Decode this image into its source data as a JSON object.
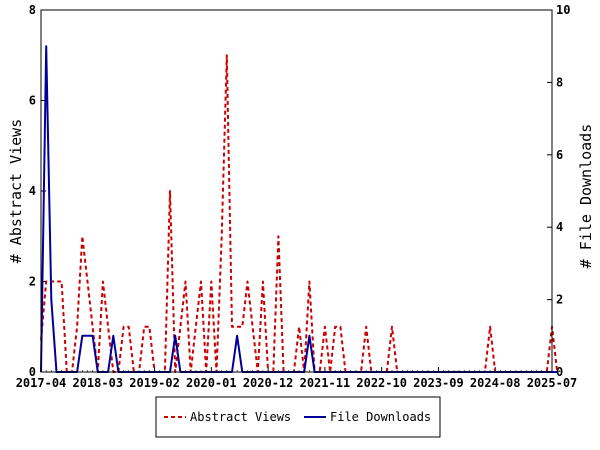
{
  "chart_data": {
    "type": "line",
    "ylabel": "# Abstract Views",
    "y2label": "# File Downloads",
    "x_tick_labels": [
      "2017-04",
      "2018-03",
      "2019-02",
      "2020-01",
      "2020-12",
      "2021-11",
      "2022-10",
      "2023-09",
      "2024-08",
      "2025-07"
    ],
    "ylim": [
      0,
      8
    ],
    "y_ticks": [
      "0",
      "2",
      "4",
      "6",
      "8"
    ],
    "y2lim": [
      0,
      10
    ],
    "y2_ticks": [
      "0",
      "2",
      "4",
      "6",
      "8",
      "10"
    ],
    "legend_position": "bottom-center",
    "grid": false,
    "series": [
      {
        "name": "Abstract Views",
        "axis": "left",
        "color": "#cc0000",
        "style": "dashed",
        "points": [
          [
            "2017-04",
            0.7
          ],
          [
            "2017-05",
            2
          ],
          [
            "2017-06",
            2
          ],
          [
            "2017-07",
            2
          ],
          [
            "2017-08",
            2
          ],
          [
            "2017-09",
            0
          ],
          [
            "2017-10",
            0
          ],
          [
            "2017-11",
            1
          ],
          [
            "2017-12",
            3
          ],
          [
            "2018-01",
            2
          ],
          [
            "2018-02",
            1
          ],
          [
            "2018-03",
            0
          ],
          [
            "2018-04",
            2
          ],
          [
            "2018-05",
            1
          ],
          [
            "2018-06",
            0
          ],
          [
            "2018-07",
            0
          ],
          [
            "2018-08",
            1
          ],
          [
            "2018-09",
            1
          ],
          [
            "2018-10",
            0
          ],
          [
            "2018-11",
            0
          ],
          [
            "2018-12",
            1
          ],
          [
            "2019-01",
            1
          ],
          [
            "2019-02",
            0
          ],
          [
            "2019-03",
            0
          ],
          [
            "2019-04",
            0
          ],
          [
            "2019-05",
            4
          ],
          [
            "2019-06",
            0
          ],
          [
            "2019-07",
            1
          ],
          [
            "2019-08",
            2
          ],
          [
            "2019-09",
            0
          ],
          [
            "2019-10",
            1
          ],
          [
            "2019-11",
            2
          ],
          [
            "2019-12",
            0
          ],
          [
            "2020-01",
            2
          ],
          [
            "2020-02",
            0
          ],
          [
            "2020-03",
            3
          ],
          [
            "2020-04",
            7
          ],
          [
            "2020-05",
            1
          ],
          [
            "2020-06",
            1
          ],
          [
            "2020-07",
            1
          ],
          [
            "2020-08",
            2
          ],
          [
            "2020-09",
            1
          ],
          [
            "2020-10",
            0
          ],
          [
            "2020-11",
            2
          ],
          [
            "2020-12",
            0
          ],
          [
            "2021-01",
            0
          ],
          [
            "2021-02",
            3
          ],
          [
            "2021-03",
            0
          ],
          [
            "2021-04",
            0
          ],
          [
            "2021-05",
            0
          ],
          [
            "2021-06",
            1
          ],
          [
            "2021-07",
            0
          ],
          [
            "2021-08",
            2
          ],
          [
            "2021-09",
            0
          ],
          [
            "2021-10",
            0
          ],
          [
            "2021-11",
            1
          ],
          [
            "2021-12",
            0
          ],
          [
            "2022-01",
            1
          ],
          [
            "2022-02",
            1
          ],
          [
            "2022-03",
            0
          ],
          [
            "2022-04",
            0
          ],
          [
            "2022-05",
            0
          ],
          [
            "2022-06",
            0
          ],
          [
            "2022-07",
            1
          ],
          [
            "2022-08",
            0
          ],
          [
            "2022-09",
            0
          ],
          [
            "2022-10",
            0
          ],
          [
            "2022-11",
            0
          ],
          [
            "2022-12",
            1
          ],
          [
            "2023-01",
            0
          ],
          [
            "2024-06",
            0
          ],
          [
            "2024-07",
            1
          ],
          [
            "2024-08",
            0
          ],
          [
            "2025-06",
            0
          ],
          [
            "2025-07",
            1
          ],
          [
            "2025-08",
            0
          ]
        ]
      },
      {
        "name": "File Downloads",
        "axis": "right",
        "color": "#000099",
        "style": "solid",
        "points": [
          [
            "2017-04",
            0
          ],
          [
            "2017-05",
            9
          ],
          [
            "2017-06",
            2
          ],
          [
            "2017-07",
            0
          ],
          [
            "2017-08",
            0
          ],
          [
            "2017-09",
            0
          ],
          [
            "2017-10",
            0
          ],
          [
            "2017-11",
            0
          ],
          [
            "2017-12",
            1
          ],
          [
            "2018-01",
            1
          ],
          [
            "2018-02",
            1
          ],
          [
            "2018-03",
            0
          ],
          [
            "2018-04",
            0
          ],
          [
            "2018-05",
            0
          ],
          [
            "2018-06",
            1
          ],
          [
            "2018-07",
            0
          ],
          [
            "2018-08",
            0
          ],
          [
            "2018-09",
            0
          ],
          [
            "2018-10",
            0
          ],
          [
            "2018-11",
            0
          ],
          [
            "2018-12",
            0
          ],
          [
            "2019-01",
            0
          ],
          [
            "2019-02",
            0
          ],
          [
            "2019-03",
            0
          ],
          [
            "2019-04",
            0
          ],
          [
            "2019-05",
            0
          ],
          [
            "2019-06",
            1
          ],
          [
            "2019-07",
            0
          ],
          [
            "2020-04",
            0
          ],
          [
            "2020-05",
            0
          ],
          [
            "2020-06",
            1
          ],
          [
            "2020-07",
            0
          ],
          [
            "2021-07",
            0
          ],
          [
            "2021-08",
            1
          ],
          [
            "2021-09",
            0
          ],
          [
            "2025-08",
            0
          ]
        ]
      }
    ]
  }
}
